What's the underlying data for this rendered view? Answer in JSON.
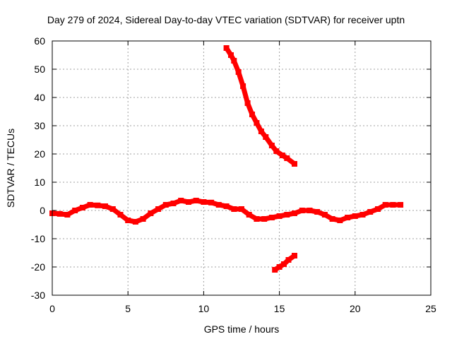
{
  "chart_data": {
    "type": "scatter",
    "title": "Day 279 of 2024, Sidereal Day-to-day VTEC variation (SDTVAR) for receiver uptn",
    "xlabel": "GPS time / hours",
    "ylabel": "SDTVAR / TECUs",
    "xlim": [
      0,
      25
    ],
    "ylim": [
      -30,
      60
    ],
    "xticks": [
      "0",
      "5",
      "10",
      "15",
      "20",
      "25"
    ],
    "yticks": [
      "60",
      "50",
      "40",
      "30",
      "20",
      "10",
      "0",
      "-10",
      "-20",
      "-30"
    ],
    "grid": true,
    "series": [
      {
        "name": "main-band",
        "color": "#ff0000",
        "points": [
          [
            0,
            -1
          ],
          [
            0.5,
            -1.2
          ],
          [
            1,
            -1.5
          ],
          [
            1.5,
            0
          ],
          [
            2,
            1
          ],
          [
            2.5,
            2
          ],
          [
            3,
            1.8
          ],
          [
            3.5,
            1.5
          ],
          [
            4,
            0.5
          ],
          [
            4.5,
            -1.5
          ],
          [
            5,
            -3.5
          ],
          [
            5.5,
            -4
          ],
          [
            6,
            -3
          ],
          [
            6.5,
            -1
          ],
          [
            7,
            0.5
          ],
          [
            7.5,
            2
          ],
          [
            8,
            2.5
          ],
          [
            8.5,
            3.5
          ],
          [
            9,
            3
          ],
          [
            9.5,
            3.5
          ],
          [
            10,
            3
          ],
          [
            10.5,
            2.8
          ],
          [
            11,
            2
          ],
          [
            11.5,
            1.5
          ],
          [
            12,
            0.5
          ],
          [
            12.5,
            0.5
          ],
          [
            13,
            -1.5
          ],
          [
            13.5,
            -3
          ],
          [
            14,
            -3
          ],
          [
            14.5,
            -2.5
          ],
          [
            15,
            -2
          ],
          [
            15.5,
            -1.5
          ],
          [
            16,
            -1
          ],
          [
            16.5,
            0
          ],
          [
            17,
            0
          ],
          [
            17.5,
            -0.5
          ],
          [
            18,
            -1.5
          ],
          [
            18.5,
            -3
          ],
          [
            19,
            -3.5
          ],
          [
            19.5,
            -2.5
          ],
          [
            20,
            -2
          ],
          [
            20.5,
            -1.5
          ],
          [
            21,
            -0.5
          ],
          [
            21.5,
            0.5
          ],
          [
            22,
            2
          ],
          [
            22.5,
            2
          ],
          [
            23,
            2
          ]
        ]
      },
      {
        "name": "upper-arc",
        "color": "#ff0000",
        "points": [
          [
            11.5,
            57.5
          ],
          [
            11.8,
            55
          ],
          [
            12,
            53
          ],
          [
            12.3,
            49
          ],
          [
            12.6,
            44
          ],
          [
            12.9,
            38
          ],
          [
            13.2,
            34
          ],
          [
            13.5,
            31
          ],
          [
            13.8,
            28
          ],
          [
            14.1,
            26
          ],
          [
            14.5,
            23
          ],
          [
            14.8,
            21
          ],
          [
            15.2,
            19.5
          ],
          [
            15.5,
            18.5
          ],
          [
            16,
            16.5
          ]
        ]
      },
      {
        "name": "lower-segment",
        "color": "#ff0000",
        "points": [
          [
            14.7,
            -21
          ],
          [
            15,
            -20
          ],
          [
            15.3,
            -19
          ],
          [
            15.6,
            -17.5
          ],
          [
            16,
            -16
          ]
        ]
      }
    ]
  }
}
